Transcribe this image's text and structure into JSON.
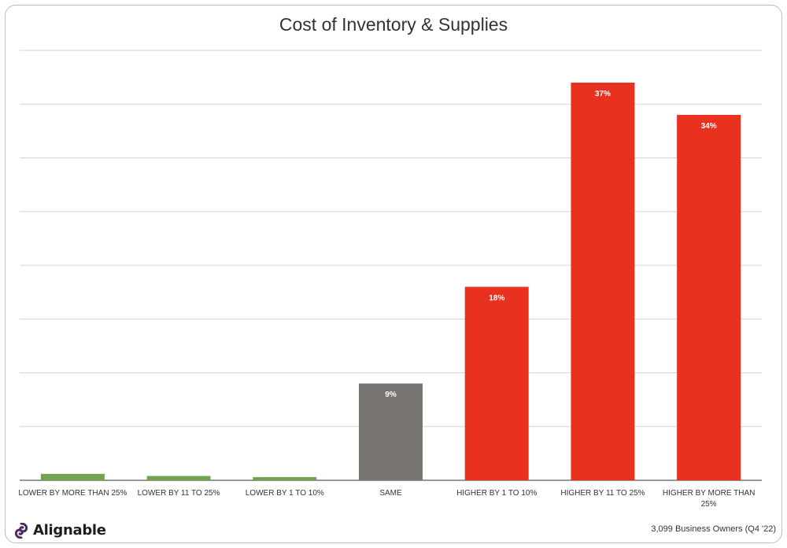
{
  "chart_data": {
    "type": "bar",
    "title": "Cost of Inventory & Supplies",
    "xlabel": "",
    "ylabel": "",
    "ylim": [
      0,
      40
    ],
    "grid": true,
    "legend": "none",
    "categories": [
      "LOWER BY MORE THAN 25%",
      "LOWER BY 11 TO 25%",
      "LOWER BY 1 TO 10%",
      "SAME",
      "HIGHER BY 1 TO 10%",
      "HIGHER BY 11 TO 25%",
      "HIGHER BY MORE THAN 25%"
    ],
    "values": [
      0.6,
      0.4,
      0.3,
      9,
      18,
      37,
      34
    ],
    "data_labels": [
      "",
      "",
      "",
      "9%",
      "18%",
      "37%",
      "34%"
    ],
    "colors": [
      "#70a451",
      "#70a451",
      "#70a451",
      "#787471",
      "#e8321f",
      "#e8321f",
      "#e8321f"
    ]
  },
  "brand": {
    "name": "Alignable",
    "icon": "alignable-logo-icon",
    "color": "#4a2c5e"
  },
  "footnote": "3,099 Business Owners (Q4 '22)"
}
